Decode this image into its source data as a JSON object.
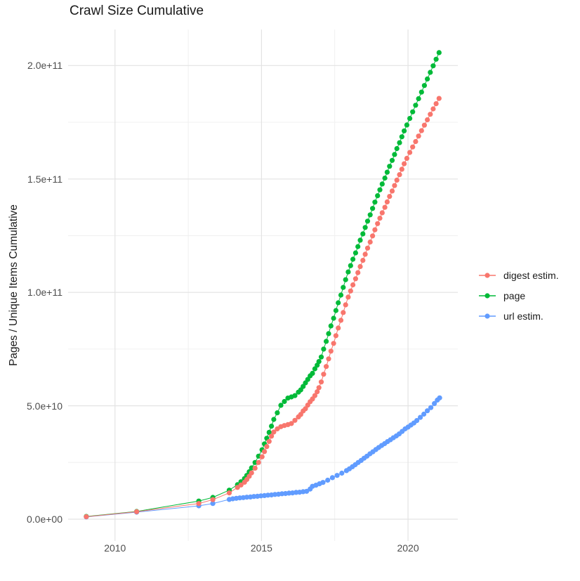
{
  "title": "Crawl Size Cumulative",
  "background_color": "#ffffff",
  "grid_colors": {
    "major": "#e3e3e3",
    "minor": "#f0f0f0"
  },
  "legend": {
    "items": [
      {
        "label": "digest estim.",
        "color": "#F8766D"
      },
      {
        "label": "page",
        "color": "#00BA38"
      },
      {
        "label": "url estim.",
        "color": "#619CFF"
      }
    ]
  },
  "chart_data": {
    "type": "line",
    "title": "Crawl Size Cumulative",
    "xlabel": "",
    "ylabel": "Pages / Unique Items Cumulative",
    "grid": true,
    "legend_position": "right",
    "x_range": [
      2008.4,
      2021.7
    ],
    "y_range_e9": [
      -9.6,
      215.9
    ],
    "value_unit": 1000000000.0,
    "x_ticks": {
      "values": [
        2010,
        2015,
        2020
      ],
      "labels": [
        "2010",
        "2015",
        "2020"
      ],
      "minor": [
        2012.5,
        2017.5
      ]
    },
    "y_ticks": {
      "values_e9": [
        0,
        50,
        100,
        150,
        200
      ],
      "labels": [
        "0.0e+00",
        "5.0e+10",
        "1.0e+11",
        "1.5e+11",
        "2.0e+11"
      ],
      "minor_e9": [
        25,
        75,
        125,
        175
      ]
    },
    "series": [
      {
        "name": "digest estim.",
        "color": "#F8766D",
        "points_year_e9": [
          [
            2009.02,
            1.1
          ],
          [
            2010.74,
            3.3
          ],
          [
            2012.86,
            6.9
          ],
          [
            2013.34,
            8.6
          ],
          [
            2013.9,
            11.6
          ],
          [
            2014.18,
            14.0
          ],
          [
            2014.3,
            15.1
          ],
          [
            2014.42,
            16.3
          ],
          [
            2014.5,
            17.5
          ],
          [
            2014.58,
            18.9
          ],
          [
            2014.66,
            20.4
          ],
          [
            2014.78,
            22.5
          ],
          [
            2014.9,
            25.0
          ],
          [
            2015.02,
            27.5
          ],
          [
            2015.1,
            29.8
          ],
          [
            2015.18,
            32.0
          ],
          [
            2015.26,
            34.3
          ],
          [
            2015.34,
            36.6
          ],
          [
            2015.42,
            38.4
          ],
          [
            2015.54,
            39.8
          ],
          [
            2015.66,
            40.8
          ],
          [
            2015.78,
            41.3
          ],
          [
            2015.9,
            41.7
          ],
          [
            2016.02,
            42.2
          ],
          [
            2016.14,
            43.6
          ],
          [
            2016.26,
            45.1
          ],
          [
            2016.34,
            46.2
          ],
          [
            2016.42,
            47.7
          ],
          [
            2016.5,
            48.7
          ],
          [
            2016.58,
            50.3
          ],
          [
            2016.66,
            51.8
          ],
          [
            2016.74,
            53.0
          ],
          [
            2016.82,
            54.5
          ],
          [
            2016.9,
            56.2
          ],
          [
            2016.96,
            58.0
          ],
          [
            2017.04,
            60.5
          ],
          [
            2017.12,
            63.9
          ],
          [
            2017.21,
            67.3
          ],
          [
            2017.29,
            70.7
          ],
          [
            2017.37,
            74.1
          ],
          [
            2017.46,
            77.5
          ],
          [
            2017.54,
            80.9
          ],
          [
            2017.62,
            84.3
          ],
          [
            2017.71,
            87.7
          ],
          [
            2017.79,
            91.1
          ],
          [
            2017.87,
            94.5
          ],
          [
            2017.96,
            97.9
          ],
          [
            2018.04,
            100.6
          ],
          [
            2018.12,
            103.3
          ],
          [
            2018.21,
            106.0
          ],
          [
            2018.29,
            108.7
          ],
          [
            2018.37,
            111.4
          ],
          [
            2018.46,
            114.1
          ],
          [
            2018.54,
            116.8
          ],
          [
            2018.62,
            119.5
          ],
          [
            2018.71,
            122.2
          ],
          [
            2018.79,
            124.9
          ],
          [
            2018.87,
            127.6
          ],
          [
            2018.96,
            130.3
          ],
          [
            2019.04,
            132.7
          ],
          [
            2019.12,
            135.1
          ],
          [
            2019.21,
            137.5
          ],
          [
            2019.29,
            139.9
          ],
          [
            2019.37,
            142.3
          ],
          [
            2019.46,
            144.7
          ],
          [
            2019.54,
            147.1
          ],
          [
            2019.62,
            149.5
          ],
          [
            2019.71,
            151.9
          ],
          [
            2019.79,
            154.3
          ],
          [
            2019.87,
            156.7
          ],
          [
            2019.96,
            159.1
          ],
          [
            2020.06,
            161.7
          ],
          [
            2020.16,
            164.1
          ],
          [
            2020.26,
            166.5
          ],
          [
            2020.36,
            168.9
          ],
          [
            2020.46,
            171.3
          ],
          [
            2020.56,
            173.7
          ],
          [
            2020.66,
            176.1
          ],
          [
            2020.76,
            178.5
          ],
          [
            2020.86,
            180.9
          ],
          [
            2020.96,
            183.2
          ],
          [
            2021.06,
            185.5
          ]
        ]
      },
      {
        "name": "page",
        "color": "#00BA38",
        "points_year_e9": [
          [
            2009.02,
            1.2
          ],
          [
            2010.74,
            3.4
          ],
          [
            2012.86,
            8.0
          ],
          [
            2013.34,
            9.6
          ],
          [
            2013.9,
            12.8
          ],
          [
            2014.18,
            15.2
          ],
          [
            2014.3,
            16.5
          ],
          [
            2014.42,
            17.9
          ],
          [
            2014.5,
            19.3
          ],
          [
            2014.58,
            20.9
          ],
          [
            2014.66,
            22.6
          ],
          [
            2014.78,
            25.0
          ],
          [
            2014.9,
            27.8
          ],
          [
            2015.02,
            30.6
          ],
          [
            2015.1,
            33.2
          ],
          [
            2015.18,
            35.7
          ],
          [
            2015.26,
            38.3
          ],
          [
            2015.34,
            41.0
          ],
          [
            2015.42,
            44.0
          ],
          [
            2015.54,
            46.9
          ],
          [
            2015.66,
            50.2
          ],
          [
            2015.78,
            51.9
          ],
          [
            2015.9,
            53.4
          ],
          [
            2016.02,
            53.9
          ],
          [
            2016.14,
            54.5
          ],
          [
            2016.26,
            56.0
          ],
          [
            2016.34,
            57.0
          ],
          [
            2016.42,
            58.5
          ],
          [
            2016.5,
            60.1
          ],
          [
            2016.58,
            61.6
          ],
          [
            2016.66,
            63.2
          ],
          [
            2016.74,
            64.3
          ],
          [
            2016.82,
            66.3
          ],
          [
            2016.9,
            67.9
          ],
          [
            2016.96,
            69.5
          ],
          [
            2017.04,
            71.5
          ],
          [
            2017.12,
            75.0
          ],
          [
            2017.21,
            78.4
          ],
          [
            2017.29,
            81.8
          ],
          [
            2017.37,
            85.2
          ],
          [
            2017.46,
            88.6
          ],
          [
            2017.54,
            92.0
          ],
          [
            2017.62,
            95.4
          ],
          [
            2017.71,
            98.8
          ],
          [
            2017.79,
            102.2
          ],
          [
            2017.87,
            105.6
          ],
          [
            2017.96,
            109.0
          ],
          [
            2018.04,
            111.8
          ],
          [
            2018.12,
            114.6
          ],
          [
            2018.21,
            117.4
          ],
          [
            2018.29,
            120.2
          ],
          [
            2018.37,
            123.0
          ],
          [
            2018.46,
            125.8
          ],
          [
            2018.54,
            128.6
          ],
          [
            2018.62,
            131.4
          ],
          [
            2018.71,
            134.2
          ],
          [
            2018.79,
            137.0
          ],
          [
            2018.87,
            139.8
          ],
          [
            2018.96,
            142.6
          ],
          [
            2019.04,
            145.2
          ],
          [
            2019.12,
            147.8
          ],
          [
            2019.21,
            150.4
          ],
          [
            2019.29,
            153.0
          ],
          [
            2019.37,
            155.6
          ],
          [
            2019.46,
            158.2
          ],
          [
            2019.54,
            160.8
          ],
          [
            2019.62,
            163.4
          ],
          [
            2019.71,
            166.0
          ],
          [
            2019.79,
            168.6
          ],
          [
            2019.87,
            171.2
          ],
          [
            2019.96,
            173.8
          ],
          [
            2020.06,
            176.7
          ],
          [
            2020.16,
            179.6
          ],
          [
            2020.26,
            182.5
          ],
          [
            2020.36,
            185.4
          ],
          [
            2020.46,
            188.3
          ],
          [
            2020.56,
            191.2
          ],
          [
            2020.66,
            194.1
          ],
          [
            2020.76,
            197.0
          ],
          [
            2020.86,
            199.9
          ],
          [
            2020.96,
            202.8
          ],
          [
            2021.06,
            205.7
          ]
        ]
      },
      {
        "name": "url estim.",
        "color": "#619CFF",
        "points_year_e9": [
          [
            2009.02,
            1.0
          ],
          [
            2010.74,
            3.1
          ],
          [
            2012.86,
            5.9
          ],
          [
            2013.34,
            6.9
          ],
          [
            2013.9,
            8.7
          ],
          [
            2014.02,
            9.0
          ],
          [
            2014.14,
            9.2
          ],
          [
            2014.26,
            9.4
          ],
          [
            2014.38,
            9.5
          ],
          [
            2014.5,
            9.7
          ],
          [
            2014.62,
            9.8
          ],
          [
            2014.74,
            10.0
          ],
          [
            2014.86,
            10.1
          ],
          [
            2014.98,
            10.3
          ],
          [
            2015.1,
            10.4
          ],
          [
            2015.22,
            10.6
          ],
          [
            2015.34,
            10.7
          ],
          [
            2015.46,
            10.9
          ],
          [
            2015.58,
            11.0
          ],
          [
            2015.7,
            11.2
          ],
          [
            2015.82,
            11.3
          ],
          [
            2015.94,
            11.5
          ],
          [
            2016.06,
            11.6
          ],
          [
            2016.18,
            11.8
          ],
          [
            2016.3,
            11.9
          ],
          [
            2016.42,
            12.1
          ],
          [
            2016.54,
            12.3
          ],
          [
            2016.66,
            13.3
          ],
          [
            2016.74,
            14.5
          ],
          [
            2016.86,
            15.0
          ],
          [
            2016.98,
            15.6
          ],
          [
            2017.1,
            16.2
          ],
          [
            2017.26,
            17.2
          ],
          [
            2017.42,
            18.3
          ],
          [
            2017.58,
            19.3
          ],
          [
            2017.74,
            20.3
          ],
          [
            2017.9,
            21.4
          ],
          [
            2018.0,
            22.2
          ],
          [
            2018.1,
            23.1
          ],
          [
            2018.2,
            24.0
          ],
          [
            2018.3,
            25.0
          ],
          [
            2018.4,
            25.9
          ],
          [
            2018.5,
            26.9
          ],
          [
            2018.6,
            27.8
          ],
          [
            2018.7,
            28.8
          ],
          [
            2018.8,
            29.7
          ],
          [
            2018.9,
            30.7
          ],
          [
            2019.0,
            31.6
          ],
          [
            2019.1,
            32.5
          ],
          [
            2019.2,
            33.3
          ],
          [
            2019.3,
            34.2
          ],
          [
            2019.4,
            35.0
          ],
          [
            2019.5,
            35.9
          ],
          [
            2019.6,
            36.7
          ],
          [
            2019.7,
            37.6
          ],
          [
            2019.8,
            38.7
          ],
          [
            2019.9,
            39.8
          ],
          [
            2020.0,
            40.6
          ],
          [
            2020.1,
            41.5
          ],
          [
            2020.2,
            42.4
          ],
          [
            2020.3,
            43.5
          ],
          [
            2020.42,
            44.9
          ],
          [
            2020.54,
            46.3
          ],
          [
            2020.66,
            47.8
          ],
          [
            2020.78,
            49.2
          ],
          [
            2020.9,
            51.0
          ],
          [
            2021.0,
            52.5
          ],
          [
            2021.08,
            53.5
          ]
        ]
      }
    ]
  }
}
